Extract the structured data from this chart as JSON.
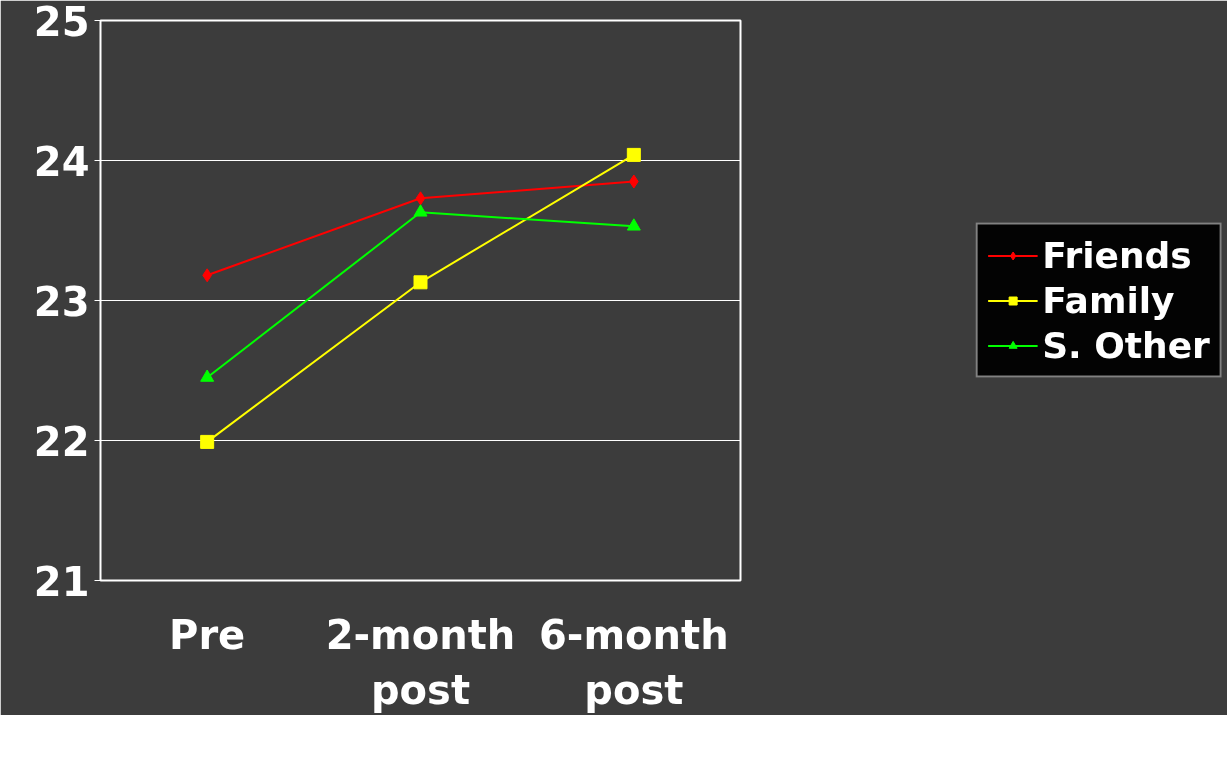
{
  "chart_data": {
    "type": "line",
    "categories": [
      "Pre",
      "2-month post",
      "6-month post"
    ],
    "series": [
      {
        "name": "Friends",
        "color": "#ff0000",
        "marker": "diamond",
        "values": [
          23.18,
          23.73,
          23.85
        ]
      },
      {
        "name": "Family",
        "color": "#ffff00",
        "marker": "square",
        "values": [
          21.99,
          23.13,
          24.04
        ]
      },
      {
        "name": "S. Other",
        "color": "#00ff00",
        "marker": "triangle",
        "values": [
          22.45,
          23.63,
          23.53
        ]
      }
    ],
    "ylim": [
      21,
      25
    ],
    "yticks": [
      21,
      22,
      23,
      24,
      25
    ],
    "grid": "y",
    "legend": "right",
    "line_style": "solid"
  }
}
